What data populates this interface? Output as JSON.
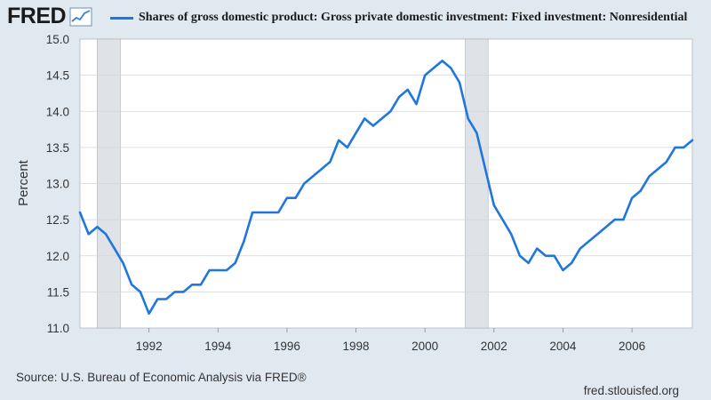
{
  "header": {
    "logo_text": "FRED",
    "legend_label": "Shares of gross domestic product: Gross private domestic investment: Fixed investment: Nonresidential"
  },
  "footer": {
    "source": "Source: U.S. Bureau of Economic Analysis via FRED®",
    "site": "fred.stlouisfed.org"
  },
  "colors": {
    "line": "#1f77dd",
    "recession": "#dfe3e8",
    "plot_bg": "#ffffff",
    "page_bg": "#e1e9f0",
    "grid": "#d0d6dd"
  },
  "chart_data": {
    "type": "line",
    "title": "Shares of gross domestic product: Gross private domestic investment: Fixed investment: Nonresidential",
    "ylabel": "Percent",
    "xlabel": "",
    "xlim": [
      1990.0,
      2007.75
    ],
    "ylim": [
      11.0,
      15.0
    ],
    "yticks": [
      "11.0",
      "11.5",
      "12.0",
      "12.5",
      "13.0",
      "13.5",
      "14.0",
      "14.5",
      "15.0"
    ],
    "xticks": [
      "1992",
      "1994",
      "1996",
      "1998",
      "2000",
      "2002",
      "2004",
      "2006"
    ],
    "recessions": [
      [
        1990.5,
        1991.17
      ],
      [
        2001.17,
        2001.83
      ]
    ],
    "series": [
      {
        "name": "Shares of gross domestic product: Gross private domestic investment: Fixed investment: Nonresidential",
        "x": [
          1990.0,
          1990.25,
          1990.5,
          1990.75,
          1991.0,
          1991.25,
          1991.5,
          1991.75,
          1992.0,
          1992.25,
          1992.5,
          1992.75,
          1993.0,
          1993.25,
          1993.5,
          1993.75,
          1994.0,
          1994.25,
          1994.5,
          1994.75,
          1995.0,
          1995.25,
          1995.5,
          1995.75,
          1996.0,
          1996.25,
          1996.5,
          1996.75,
          1997.0,
          1997.25,
          1997.5,
          1997.75,
          1998.0,
          1998.25,
          1998.5,
          1998.75,
          1999.0,
          1999.25,
          1999.5,
          1999.75,
          2000.0,
          2000.25,
          2000.5,
          2000.75,
          2001.0,
          2001.25,
          2001.5,
          2001.75,
          2002.0,
          2002.25,
          2002.5,
          2002.75,
          2003.0,
          2003.25,
          2003.5,
          2003.75,
          2004.0,
          2004.25,
          2004.5,
          2004.75,
          2005.0,
          2005.25,
          2005.5,
          2005.75,
          2006.0,
          2006.25,
          2006.5,
          2006.75,
          2007.0,
          2007.25,
          2007.5,
          2007.75
        ],
        "values": [
          12.6,
          12.3,
          12.4,
          12.3,
          12.1,
          11.9,
          11.6,
          11.5,
          11.2,
          11.4,
          11.4,
          11.5,
          11.5,
          11.6,
          11.6,
          11.8,
          11.8,
          11.8,
          11.9,
          12.2,
          12.6,
          12.6,
          12.6,
          12.6,
          12.8,
          12.8,
          13.0,
          13.1,
          13.2,
          13.3,
          13.6,
          13.5,
          13.7,
          13.9,
          13.8,
          13.9,
          14.0,
          14.2,
          14.3,
          14.1,
          14.5,
          14.6,
          14.7,
          14.6,
          14.4,
          13.9,
          13.7,
          13.2,
          12.7,
          12.5,
          12.3,
          12.0,
          11.9,
          12.1,
          12.0,
          12.0,
          11.8,
          11.9,
          12.1,
          12.2,
          12.3,
          12.4,
          12.5,
          12.5,
          12.8,
          12.9,
          13.1,
          13.2,
          13.3,
          13.5,
          13.5,
          13.6
        ]
      }
    ]
  }
}
